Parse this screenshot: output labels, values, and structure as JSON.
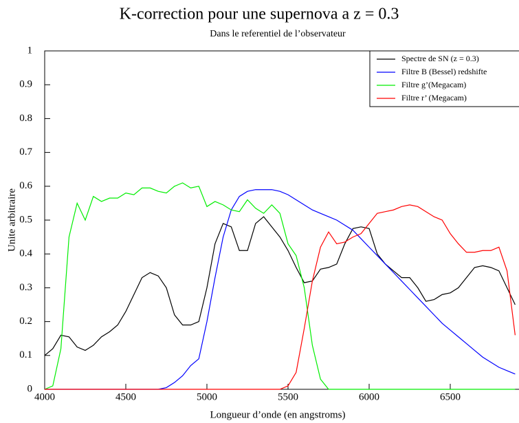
{
  "chart_data": {
    "type": "line",
    "title": "K-correction pour une supernova a z = 0.3",
    "subtitle": "Dans le referentiel de l’observateur",
    "xlabel": "Longueur d’onde (en angstroms)",
    "ylabel": "Unite arbitraire",
    "x": [
      4000,
      4050,
      4100,
      4150,
      4200,
      4250,
      4300,
      4350,
      4400,
      4450,
      4500,
      4550,
      4600,
      4650,
      4700,
      4750,
      4800,
      4850,
      4900,
      4950,
      5000,
      5050,
      5100,
      5150,
      5200,
      5250,
      5300,
      5350,
      5400,
      5450,
      5500,
      5550,
      5600,
      5650,
      5700,
      5750,
      5800,
      5850,
      5900,
      5950,
      6000,
      6050,
      6100,
      6150,
      6200,
      6250,
      6300,
      6350,
      6400,
      6450,
      6500,
      6550,
      6600,
      6650,
      6700,
      6750,
      6800,
      6850,
      6900
    ],
    "series": [
      {
        "name": "Spectre de SN (z = 0.3)",
        "color": "#000000",
        "values": [
          0.1,
          0.12,
          0.16,
          0.155,
          0.125,
          0.115,
          0.13,
          0.155,
          0.17,
          0.19,
          0.23,
          0.28,
          0.33,
          0.345,
          0.335,
          0.3,
          0.22,
          0.19,
          0.19,
          0.2,
          0.3,
          0.43,
          0.49,
          0.48,
          0.41,
          0.41,
          0.49,
          0.51,
          0.48,
          0.45,
          0.41,
          0.36,
          0.315,
          0.32,
          0.355,
          0.36,
          0.37,
          0.43,
          0.475,
          0.48,
          0.475,
          0.4,
          0.37,
          0.35,
          0.33,
          0.33,
          0.3,
          0.26,
          0.265,
          0.28,
          0.285,
          0.3,
          0.33,
          0.36,
          0.365,
          0.36,
          0.35,
          0.3,
          0.25
        ]
      },
      {
        "name": "Filtre B (Bessel) redshifte",
        "color": "#0000ff",
        "values": [
          0,
          0,
          0,
          0,
          0,
          0,
          0,
          0,
          0,
          0,
          0,
          0,
          0,
          0,
          0,
          0.005,
          0.02,
          0.04,
          0.07,
          0.09,
          0.2,
          0.33,
          0.45,
          0.53,
          0.57,
          0.585,
          0.59,
          0.59,
          0.59,
          0.585,
          0.575,
          0.56,
          0.545,
          0.53,
          0.52,
          0.51,
          0.5,
          0.485,
          0.47,
          0.445,
          0.42,
          0.395,
          0.37,
          0.345,
          0.32,
          0.295,
          0.27,
          0.245,
          0.22,
          0.195,
          0.175,
          0.155,
          0.135,
          0.115,
          0.095,
          0.08,
          0.065,
          0.055,
          0.045
        ]
      },
      {
        "name": "Filtre g’(Megacam)",
        "color": "#00ee00",
        "values": [
          0,
          0.01,
          0.12,
          0.45,
          0.55,
          0.5,
          0.57,
          0.555,
          0.565,
          0.565,
          0.58,
          0.575,
          0.595,
          0.595,
          0.585,
          0.58,
          0.6,
          0.61,
          0.595,
          0.6,
          0.54,
          0.555,
          0.545,
          0.53,
          0.525,
          0.56,
          0.535,
          0.52,
          0.545,
          0.52,
          0.43,
          0.395,
          0.3,
          0.13,
          0.03,
          0,
          0,
          0,
          0,
          0,
          0,
          0,
          0,
          0,
          0,
          0,
          0,
          0,
          0,
          0,
          0,
          0,
          0,
          0,
          0,
          0,
          0,
          0,
          0
        ]
      },
      {
        "name": "Filtre r’ (Megacam)",
        "color": "#ff0000",
        "values": [
          0,
          0,
          0,
          0,
          0,
          0,
          0,
          0,
          0,
          0,
          0,
          0,
          0,
          0,
          0,
          0,
          0,
          0,
          0,
          0,
          0,
          0,
          0,
          0,
          0,
          0,
          0,
          0,
          0,
          0,
          0.01,
          0.05,
          0.18,
          0.32,
          0.42,
          0.465,
          0.43,
          0.435,
          0.45,
          0.46,
          0.49,
          0.52,
          0.525,
          0.53,
          0.54,
          0.545,
          0.54,
          0.525,
          0.51,
          0.5,
          0.46,
          0.43,
          0.405,
          0.405,
          0.41,
          0.41,
          0.42,
          0.35,
          0.16
        ]
      }
    ],
    "xlim": [
      4000,
      7000
    ],
    "ylim": [
      0,
      1
    ],
    "xticks": [
      4000,
      4500,
      5000,
      5500,
      6000,
      6500
    ],
    "yticks": [
      0,
      0.1,
      0.2,
      0.3,
      0.4,
      0.5,
      0.6,
      0.7,
      0.8,
      0.9,
      1
    ],
    "legend": "upper right"
  }
}
